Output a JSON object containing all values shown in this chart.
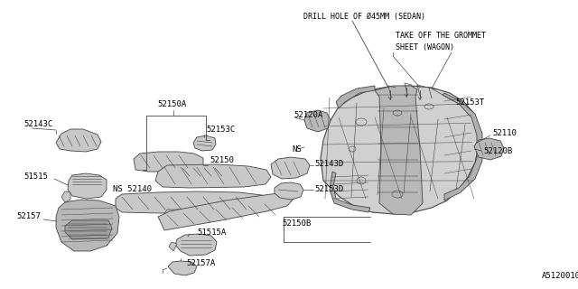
{
  "bg_color": "#ffffff",
  "line_color": "#444444",
  "fig_width": 6.4,
  "fig_height": 3.2,
  "dpi": 100,
  "watermark": "A512001058",
  "title_note1": "DRILL HOLE OF Ø45MM (SEDAN)",
  "title_note2": "TAKE OFF THE GROMMET",
  "title_note3": "SHEET (WAGON)"
}
